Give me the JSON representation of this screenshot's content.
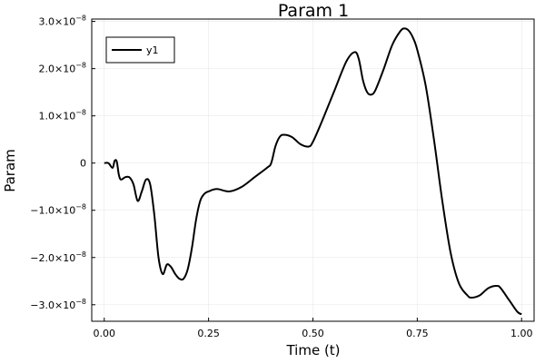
{
  "chart_data": {
    "type": "line",
    "title": "Param 1",
    "xlabel": "Time (t)",
    "ylabel": "Param",
    "xlim": [
      -0.03,
      1.03
    ],
    "ylim": [
      -3.35e-08,
      3.05e-08
    ],
    "x_ticks": [
      {
        "value": 0.0,
        "label": "0.00"
      },
      {
        "value": 0.25,
        "label": "0.25"
      },
      {
        "value": 0.5,
        "label": "0.50"
      },
      {
        "value": 0.75,
        "label": "0.75"
      },
      {
        "value": 1.0,
        "label": "1.00"
      }
    ],
    "y_ticks": [
      {
        "value": -3e-08,
        "mant": "−3.0×10",
        "exp": "−8"
      },
      {
        "value": -2e-08,
        "mant": "−2.0×10",
        "exp": "−8"
      },
      {
        "value": -1e-08,
        "mant": "−1.0×10",
        "exp": "−8"
      },
      {
        "value": 0,
        "mant": "0",
        "exp": ""
      },
      {
        "value": 1e-08,
        "mant": "1.0×10",
        "exp": "−8"
      },
      {
        "value": 2e-08,
        "mant": "2.0×10",
        "exp": "−8"
      },
      {
        "value": 3e-08,
        "mant": "3.0×10",
        "exp": "−8"
      }
    ],
    "grid": true,
    "legend_position": "top-left",
    "series": [
      {
        "name": "y1",
        "color": "#000000",
        "x": [
          0.0,
          0.01,
          0.02,
          0.025,
          0.03,
          0.035,
          0.04,
          0.05,
          0.06,
          0.07,
          0.08,
          0.09,
          0.1,
          0.11,
          0.12,
          0.13,
          0.14,
          0.15,
          0.16,
          0.17,
          0.18,
          0.19,
          0.2,
          0.21,
          0.22,
          0.23,
          0.24,
          0.25,
          0.27,
          0.3,
          0.33,
          0.36,
          0.39,
          0.4,
          0.41,
          0.42,
          0.43,
          0.45,
          0.47,
          0.49,
          0.5,
          0.52,
          0.55,
          0.58,
          0.6,
          0.61,
          0.62,
          0.63,
          0.64,
          0.65,
          0.67,
          0.69,
          0.71,
          0.72,
          0.73,
          0.74,
          0.75,
          0.77,
          0.79,
          0.81,
          0.83,
          0.85,
          0.87,
          0.88,
          0.9,
          0.92,
          0.94,
          0.95,
          0.97,
          0.99,
          1.0
        ],
        "y": [
          0.0,
          0.0,
          -1e-09,
          5e-10,
          3e-10,
          -2.5e-09,
          -3.5e-09,
          -3e-09,
          -3e-09,
          -4.5e-09,
          -8e-09,
          -6e-09,
          -3.5e-09,
          -4.5e-09,
          -1.1e-08,
          -2e-08,
          -2.35e-08,
          -2.15e-08,
          -2.2e-08,
          -2.35e-08,
          -2.45e-08,
          -2.45e-08,
          -2.25e-08,
          -1.8e-08,
          -1.2e-08,
          -8e-09,
          -6.5e-09,
          -6e-09,
          -5.5e-09,
          -6e-09,
          -5e-09,
          -3e-09,
          -1e-09,
          0.0,
          3.5e-09,
          5.5e-09,
          6e-09,
          5.5e-09,
          4e-09,
          3.5e-09,
          4.5e-09,
          8.5e-09,
          1.5e-08,
          2.15e-08,
          2.35e-08,
          2.2e-08,
          1.75e-08,
          1.5e-08,
          1.45e-08,
          1.55e-08,
          2e-08,
          2.5e-08,
          2.8e-08,
          2.85e-08,
          2.8e-08,
          2.65e-08,
          2.4e-08,
          1.65e-08,
          5e-09,
          -8e-09,
          -1.9e-08,
          -2.55e-08,
          -2.8e-08,
          -2.85e-08,
          -2.8e-08,
          -2.65e-08,
          -2.6e-08,
          -2.65e-08,
          -2.9e-08,
          -3.15e-08,
          -3.2e-08
        ]
      }
    ]
  }
}
